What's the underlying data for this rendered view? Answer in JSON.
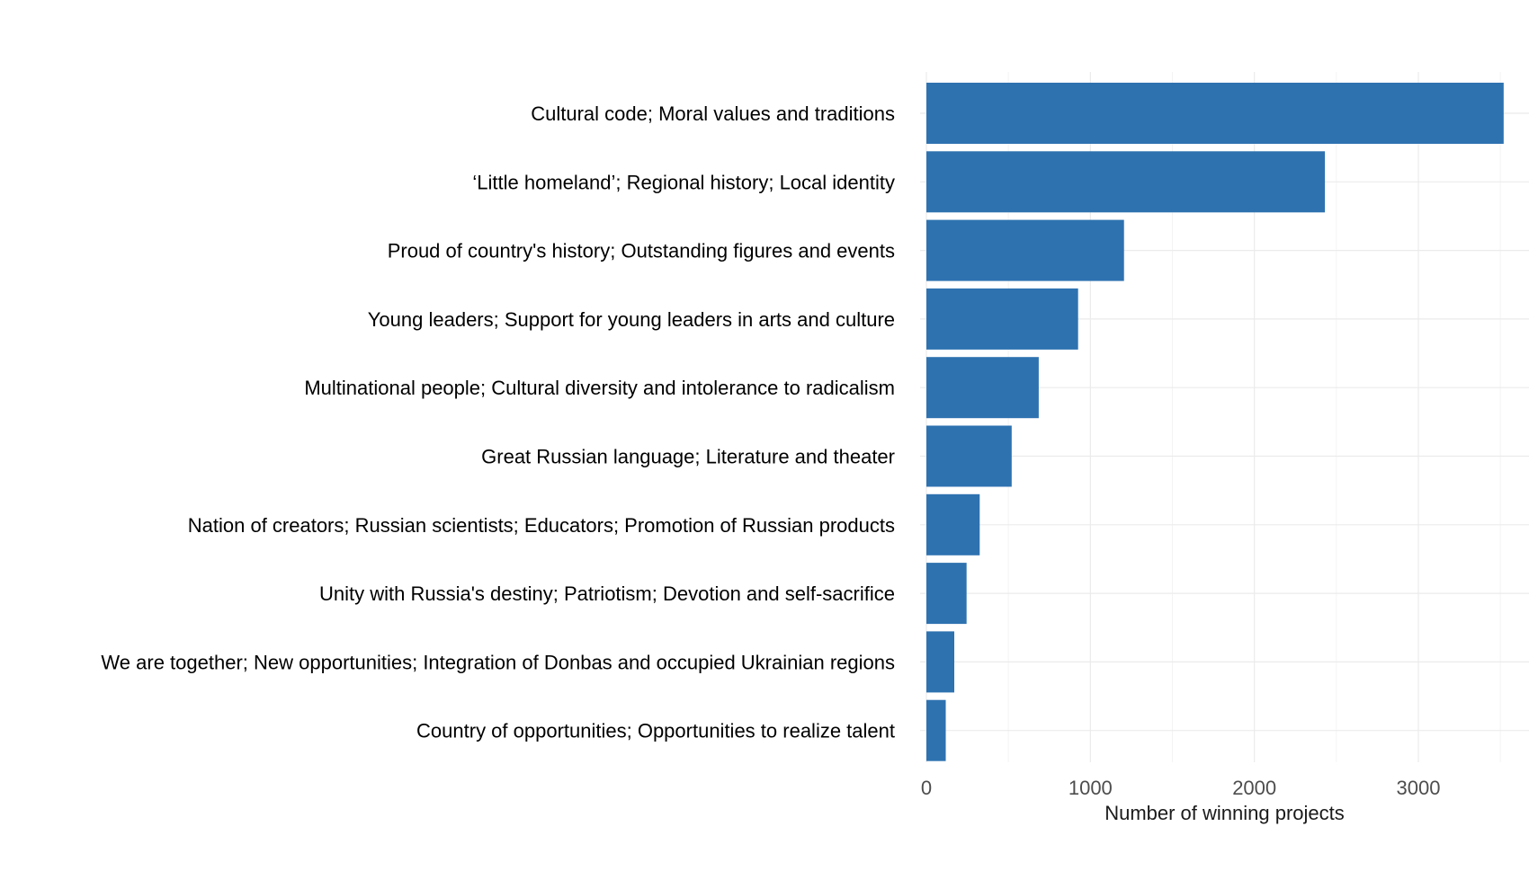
{
  "chart_data": {
    "type": "bar",
    "orientation": "horizontal",
    "title": "",
    "xlabel": "Number of winning projects",
    "ylabel": "",
    "xlim": [
      0,
      3700
    ],
    "xticks": [
      0,
      1000,
      2000,
      3000
    ],
    "xtick_labels": [
      "0",
      "1000",
      "2000",
      "3000"
    ],
    "grid": true,
    "legend": "none",
    "bar_color": "#2e72b0",
    "categories": [
      "Cultural code; Moral values and traditions",
      "‘Little homeland’; Regional history; Local identity",
      "Proud of country's history; Outstanding figures and events",
      "Young leaders; Support for young leaders in arts and culture",
      "Multinational people; Cultural diversity and intolerance to radicalism",
      "Great Russian language; Literature and theater",
      "Nation of creators; Russian scientists; Educators; Promotion of Russian products",
      "Unity with Russia's destiny; Patriotism; Devotion and self-sacrifice",
      "We are together; New opportunities; Integration of Donbas and occupied Ukrainian regions",
      "Country of opportunities; Opportunities to realize talent"
    ],
    "values": [
      3520,
      2430,
      1205,
      925,
      685,
      520,
      325,
      245,
      170,
      118
    ]
  }
}
